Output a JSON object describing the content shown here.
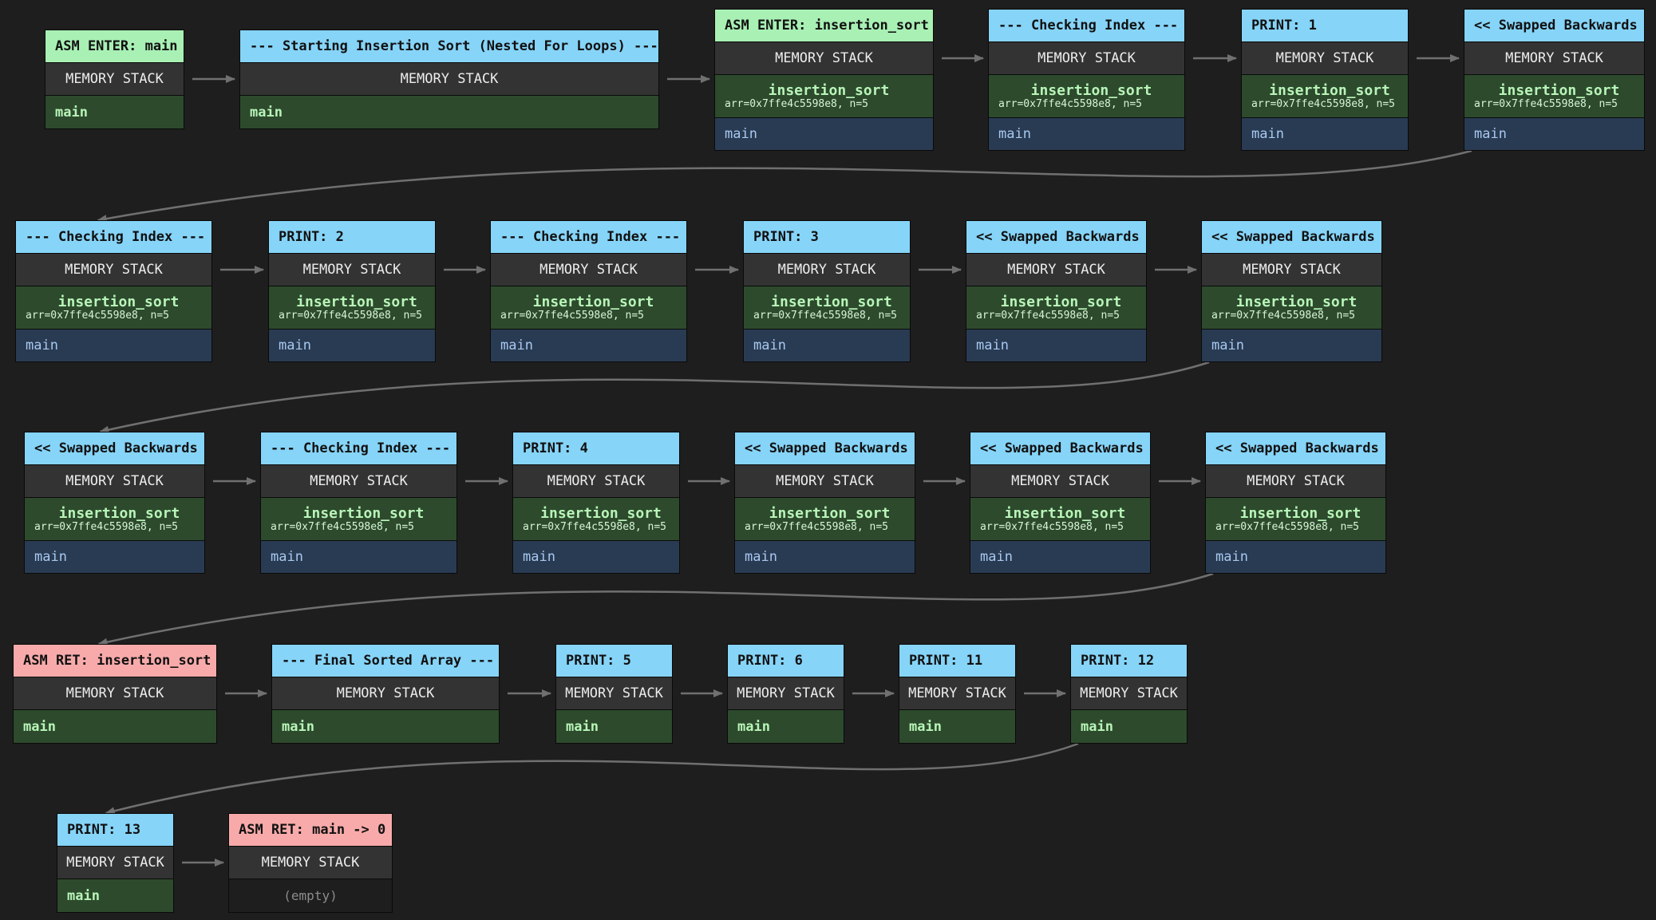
{
  "memory_label": "MEMORY STACK",
  "empty_label": "(empty)",
  "main_label": "main",
  "callee_label": "insertion_sort",
  "callee_args": "arr=0x7ffe4c5598e8, n=5",
  "nodes": [
    {
      "title": "ASM ENTER: main",
      "kind": "enter",
      "stack": "main"
    },
    {
      "title": "--- Starting Insertion Sort (Nested For Loops) ---",
      "kind": "info",
      "stack": "main"
    },
    {
      "title": "ASM ENTER: insertion_sort",
      "kind": "enter",
      "stack": "sort"
    },
    {
      "title": "--- Checking Index ---",
      "kind": "info",
      "stack": "sort"
    },
    {
      "title": "PRINT: 1",
      "kind": "info",
      "stack": "sort"
    },
    {
      "title": "<< Swapped Backwards",
      "kind": "info",
      "stack": "sort"
    },
    {
      "title": "--- Checking Index ---",
      "kind": "info",
      "stack": "sort"
    },
    {
      "title": "PRINT: 2",
      "kind": "info",
      "stack": "sort"
    },
    {
      "title": "--- Checking Index ---",
      "kind": "info",
      "stack": "sort"
    },
    {
      "title": "PRINT: 3",
      "kind": "info",
      "stack": "sort"
    },
    {
      "title": "<< Swapped Backwards",
      "kind": "info",
      "stack": "sort"
    },
    {
      "title": "<< Swapped Backwards",
      "kind": "info",
      "stack": "sort"
    },
    {
      "title": "<< Swapped Backwards",
      "kind": "info",
      "stack": "sort"
    },
    {
      "title": "--- Checking Index ---",
      "kind": "info",
      "stack": "sort"
    },
    {
      "title": "PRINT: 4",
      "kind": "info",
      "stack": "sort"
    },
    {
      "title": "<< Swapped Backwards",
      "kind": "info",
      "stack": "sort"
    },
    {
      "title": "<< Swapped Backwards",
      "kind": "info",
      "stack": "sort"
    },
    {
      "title": "<< Swapped Backwards",
      "kind": "info",
      "stack": "sort"
    },
    {
      "title": "ASM RET: insertion_sort",
      "kind": "ret",
      "stack": "main"
    },
    {
      "title": "--- Final Sorted Array ---",
      "kind": "info",
      "stack": "main"
    },
    {
      "title": "PRINT: 5",
      "kind": "info",
      "stack": "main"
    },
    {
      "title": "PRINT: 6",
      "kind": "info",
      "stack": "main"
    },
    {
      "title": "PRINT: 11",
      "kind": "info",
      "stack": "main"
    },
    {
      "title": "PRINT: 12",
      "kind": "info",
      "stack": "main"
    },
    {
      "title": "PRINT: 13",
      "kind": "info",
      "stack": "main"
    },
    {
      "title": "ASM RET: main -> 0",
      "kind": "ret",
      "stack": "empty"
    }
  ],
  "colors": {
    "background": "#1e1e1e",
    "enter_header": "#a8f0b4",
    "info_header": "#86d4f8",
    "ret_header": "#f8aaaa",
    "memory_header": "#333333",
    "active_frame": "#2d4a2d",
    "caller_frame": "#293b52",
    "edge": "#707070"
  }
}
